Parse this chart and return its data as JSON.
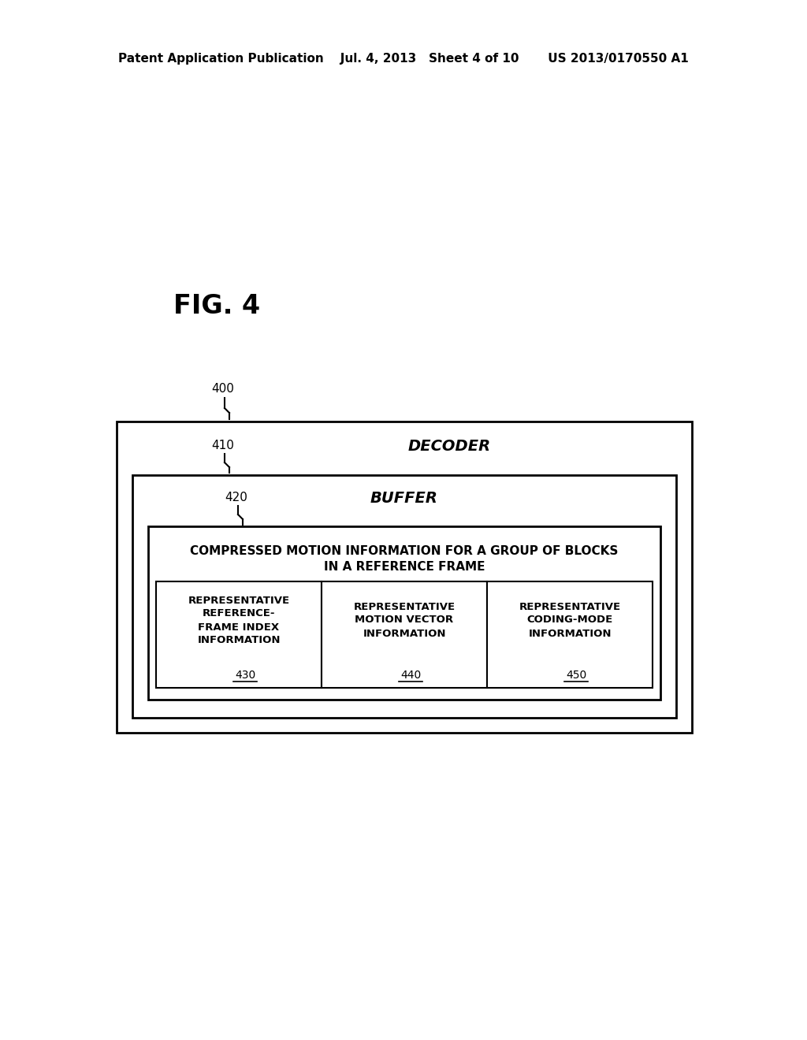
{
  "bg_color": "#ffffff",
  "header_text": "Patent Application Publication    Jul. 4, 2013   Sheet 4 of 10       US 2013/0170550 A1",
  "fig_label": "FIG. 4",
  "label_400": "400",
  "label_410": "410",
  "label_420": "420",
  "label_430": "430",
  "label_440": "440",
  "label_450": "450",
  "decoder_label": "DECODER",
  "buffer_label": "BUFFER",
  "compressed_line1": "COMPRESSED MOTION INFORMATION FOR A GROUP OF BLOCKS",
  "compressed_line2": "IN A REFERENCE FRAME",
  "box1_line1": "REPRESENTATIVE",
  "box1_line2": "REFERENCE-",
  "box1_line3": "FRAME INDEX",
  "box1_line4": "INFORMATION",
  "box2_line1": "REPRESENTATIVE",
  "box2_line2": "MOTION VECTOR",
  "box2_line3": "INFORMATION",
  "box3_line1": "REPRESENTATIVE",
  "box3_line2": "CODING-MODE",
  "box3_line3": "INFORMATION",
  "text_color": "#000000",
  "box_edge_color": "#000000"
}
